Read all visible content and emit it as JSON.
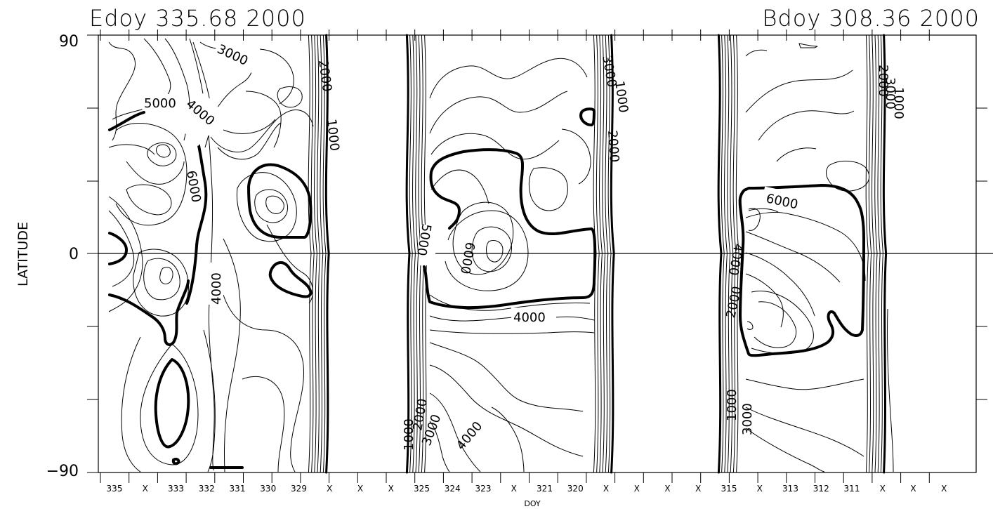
{
  "chart_data": {
    "type": "contour",
    "title_left": "Edoy 335.68 2000",
    "title_right": "Bdoy 308.36 2000",
    "xlabel": "DOY",
    "ylabel": "LATITUDE",
    "ylim": [
      -90,
      90
    ],
    "yticks": [
      90,
      0,
      -90
    ],
    "y_tick_labels": [
      "90",
      "0",
      "−90"
    ],
    "x_tick_labels": [
      "335",
      "X",
      "333",
      "332",
      "331",
      "330",
      "329",
      "X",
      "X",
      "X",
      "325",
      "324",
      "323",
      "X",
      "321",
      "320",
      "X",
      "X",
      "X",
      "X",
      "315",
      "X",
      "313",
      "312",
      "311",
      "X",
      "X",
      "X"
    ],
    "reference_line_latitude": 0,
    "contour_levels": [
      1000,
      2000,
      3000,
      4000,
      5000,
      6000
    ],
    "contour_labels": [
      {
        "text": "3000"
      },
      {
        "text": "5000"
      },
      {
        "text": "4000"
      },
      {
        "text": "6000"
      },
      {
        "text": "4000"
      },
      {
        "text": "2000"
      },
      {
        "text": "1000"
      },
      {
        "text": "5000"
      },
      {
        "text": "6000"
      },
      {
        "text": "4000"
      },
      {
        "text": "3000"
      },
      {
        "text": "1000"
      },
      {
        "text": "2000"
      },
      {
        "text": "1000"
      },
      {
        "text": "2000"
      },
      {
        "text": "3000"
      },
      {
        "text": "4000"
      },
      {
        "text": "6000"
      },
      {
        "text": "4000"
      },
      {
        "text": "2000"
      },
      {
        "text": "1000"
      },
      {
        "text": "3000"
      },
      {
        "text": "2000"
      },
      {
        "text": "1000"
      },
      {
        "text": "3000"
      }
    ]
  }
}
